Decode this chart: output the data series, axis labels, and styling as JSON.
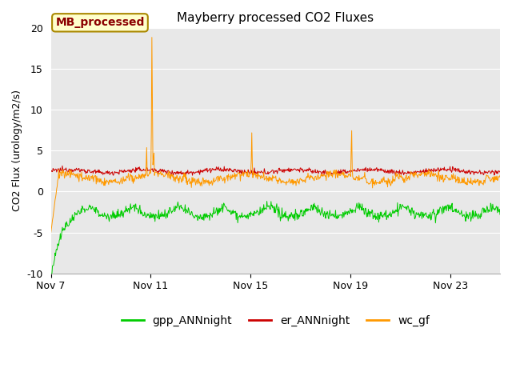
{
  "title": "Mayberry processed CO2 Fluxes",
  "ylabel": "CO2 Flux (urology/m2/s)",
  "ylim": [
    -10,
    20
  ],
  "yticks": [
    -10,
    -5,
    0,
    5,
    10,
    15,
    20
  ],
  "fig_bg": "#ffffff",
  "plot_bg": "#e8e8e8",
  "legend_label": "MB_processed",
  "legend_label_color": "#8b0000",
  "legend_label_bg": "#ffffcc",
  "legend_label_border": "#aa8800",
  "series": {
    "gpp_ANNnight": {
      "color": "#00cc00",
      "label": "gpp_ANNnight"
    },
    "er_ANNnight": {
      "color": "#cc0000",
      "label": "er_ANNnight"
    },
    "wc_gf": {
      "color": "#ff9900",
      "label": "wc_gf"
    }
  },
  "xlim": [
    7,
    25
  ],
  "xtick_days": [
    7,
    11,
    15,
    19,
    23
  ],
  "xtick_labels": [
    "Nov 7",
    "Nov 11",
    "Nov 15",
    "Nov 19",
    "Nov 23"
  ]
}
